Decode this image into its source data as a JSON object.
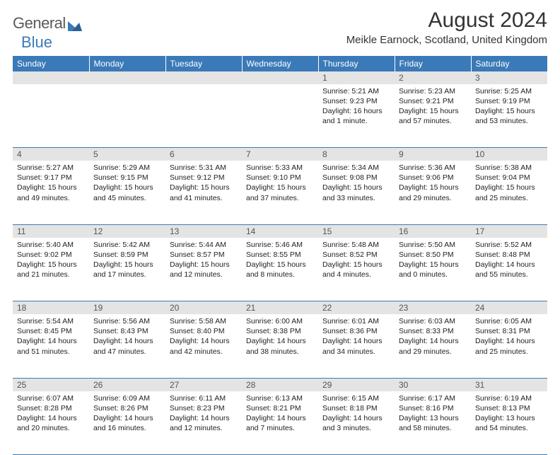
{
  "logo": {
    "text1": "General",
    "text2": "Blue"
  },
  "title": "August 2024",
  "subtitle": "Meikle Earnock, Scotland, United Kingdom",
  "colors": {
    "header_bg": "#3a7ab8",
    "header_text": "#ffffff",
    "daynum_bg": "#e4e4e4",
    "body_text": "#222222",
    "rule": "#3a7ab8"
  },
  "typography": {
    "title_fontsize": 30,
    "subtitle_fontsize": 15,
    "dayheader_fontsize": 12,
    "cell_fontsize": 10.5
  },
  "day_headers": [
    "Sunday",
    "Monday",
    "Tuesday",
    "Wednesday",
    "Thursday",
    "Friday",
    "Saturday"
  ],
  "weeks": [
    [
      null,
      null,
      null,
      null,
      {
        "n": "1",
        "sunrise": "5:21 AM",
        "sunset": "9:23 PM",
        "daylight": "16 hours and 1 minute."
      },
      {
        "n": "2",
        "sunrise": "5:23 AM",
        "sunset": "9:21 PM",
        "daylight": "15 hours and 57 minutes."
      },
      {
        "n": "3",
        "sunrise": "5:25 AM",
        "sunset": "9:19 PM",
        "daylight": "15 hours and 53 minutes."
      }
    ],
    [
      {
        "n": "4",
        "sunrise": "5:27 AM",
        "sunset": "9:17 PM",
        "daylight": "15 hours and 49 minutes."
      },
      {
        "n": "5",
        "sunrise": "5:29 AM",
        "sunset": "9:15 PM",
        "daylight": "15 hours and 45 minutes."
      },
      {
        "n": "6",
        "sunrise": "5:31 AM",
        "sunset": "9:12 PM",
        "daylight": "15 hours and 41 minutes."
      },
      {
        "n": "7",
        "sunrise": "5:33 AM",
        "sunset": "9:10 PM",
        "daylight": "15 hours and 37 minutes."
      },
      {
        "n": "8",
        "sunrise": "5:34 AM",
        "sunset": "9:08 PM",
        "daylight": "15 hours and 33 minutes."
      },
      {
        "n": "9",
        "sunrise": "5:36 AM",
        "sunset": "9:06 PM",
        "daylight": "15 hours and 29 minutes."
      },
      {
        "n": "10",
        "sunrise": "5:38 AM",
        "sunset": "9:04 PM",
        "daylight": "15 hours and 25 minutes."
      }
    ],
    [
      {
        "n": "11",
        "sunrise": "5:40 AM",
        "sunset": "9:02 PM",
        "daylight": "15 hours and 21 minutes."
      },
      {
        "n": "12",
        "sunrise": "5:42 AM",
        "sunset": "8:59 PM",
        "daylight": "15 hours and 17 minutes."
      },
      {
        "n": "13",
        "sunrise": "5:44 AM",
        "sunset": "8:57 PM",
        "daylight": "15 hours and 12 minutes."
      },
      {
        "n": "14",
        "sunrise": "5:46 AM",
        "sunset": "8:55 PM",
        "daylight": "15 hours and 8 minutes."
      },
      {
        "n": "15",
        "sunrise": "5:48 AM",
        "sunset": "8:52 PM",
        "daylight": "15 hours and 4 minutes."
      },
      {
        "n": "16",
        "sunrise": "5:50 AM",
        "sunset": "8:50 PM",
        "daylight": "15 hours and 0 minutes."
      },
      {
        "n": "17",
        "sunrise": "5:52 AM",
        "sunset": "8:48 PM",
        "daylight": "14 hours and 55 minutes."
      }
    ],
    [
      {
        "n": "18",
        "sunrise": "5:54 AM",
        "sunset": "8:45 PM",
        "daylight": "14 hours and 51 minutes."
      },
      {
        "n": "19",
        "sunrise": "5:56 AM",
        "sunset": "8:43 PM",
        "daylight": "14 hours and 47 minutes."
      },
      {
        "n": "20",
        "sunrise": "5:58 AM",
        "sunset": "8:40 PM",
        "daylight": "14 hours and 42 minutes."
      },
      {
        "n": "21",
        "sunrise": "6:00 AM",
        "sunset": "8:38 PM",
        "daylight": "14 hours and 38 minutes."
      },
      {
        "n": "22",
        "sunrise": "6:01 AM",
        "sunset": "8:36 PM",
        "daylight": "14 hours and 34 minutes."
      },
      {
        "n": "23",
        "sunrise": "6:03 AM",
        "sunset": "8:33 PM",
        "daylight": "14 hours and 29 minutes."
      },
      {
        "n": "24",
        "sunrise": "6:05 AM",
        "sunset": "8:31 PM",
        "daylight": "14 hours and 25 minutes."
      }
    ],
    [
      {
        "n": "25",
        "sunrise": "6:07 AM",
        "sunset": "8:28 PM",
        "daylight": "14 hours and 20 minutes."
      },
      {
        "n": "26",
        "sunrise": "6:09 AM",
        "sunset": "8:26 PM",
        "daylight": "14 hours and 16 minutes."
      },
      {
        "n": "27",
        "sunrise": "6:11 AM",
        "sunset": "8:23 PM",
        "daylight": "14 hours and 12 minutes."
      },
      {
        "n": "28",
        "sunrise": "6:13 AM",
        "sunset": "8:21 PM",
        "daylight": "14 hours and 7 minutes."
      },
      {
        "n": "29",
        "sunrise": "6:15 AM",
        "sunset": "8:18 PM",
        "daylight": "14 hours and 3 minutes."
      },
      {
        "n": "30",
        "sunrise": "6:17 AM",
        "sunset": "8:16 PM",
        "daylight": "13 hours and 58 minutes."
      },
      {
        "n": "31",
        "sunrise": "6:19 AM",
        "sunset": "8:13 PM",
        "daylight": "13 hours and 54 minutes."
      }
    ]
  ],
  "labels": {
    "sunrise": "Sunrise: ",
    "sunset": "Sunset: ",
    "daylight": "Daylight: "
  }
}
